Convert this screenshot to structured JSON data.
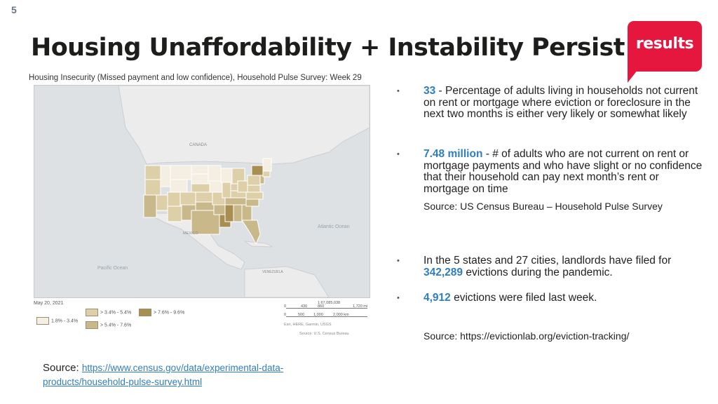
{
  "slide_number": "5",
  "title": "Housing Unaffordability + Instability Persist",
  "logo": {
    "text": "results",
    "color": "#e5173f"
  },
  "map": {
    "title": "Housing Insecurity (Missed payment and low confidence), Household Pulse Survey: Week 29",
    "labels": {
      "canada": "CANADA",
      "mexico": "MEXICO",
      "atlantic": "Atlantic\nOcean",
      "pacific": "Pacific Ocean",
      "venezuela": "VENEZUELA"
    },
    "date": "May 20, 2021",
    "legend": [
      {
        "label": "1.8% - 3.4%",
        "color": "#f4efe2"
      },
      {
        "label": "> 3.4% - 5.4%",
        "color": "#ddd0a8"
      },
      {
        "label": "> 5.4% - 7.6%",
        "color": "#c9b88a"
      },
      {
        "label": "> 7.6% - 9.6%",
        "color": "#a98e52"
      }
    ],
    "scale": {
      "ratio": "1:67,085,038",
      "miles": [
        "0",
        "430",
        "860",
        "1,720 mi"
      ],
      "km": [
        "0",
        "500",
        "1,000",
        "2,000 km"
      ],
      "credit1": "Esri, HERE, Garmin, USGS",
      "credit2": "Source: U.S. Census Bureau"
    }
  },
  "bullets": [
    {
      "highlight": "33",
      "text": " - Percentage of adults living in households not current on rent or mortgage where eviction or foreclosure in the next two months is either very likely or somewhat likely"
    },
    {
      "highlight": "7.48 million",
      "text": " - # of adults who are not current on rent or mortgage payments and who have slight or no confidence that their household can pay next month’s rent or mortgage on time"
    }
  ],
  "source_1": "Source: US Census Bureau – Household Pulse Survey",
  "bullet3": {
    "pre": "In the 5 states and 27 cities, landlords have filed for ",
    "highlight": "342,289",
    "post": " evictions during the pandemic."
  },
  "bullet4": {
    "highlight": "4,912",
    "post": " evictions were filed last week."
  },
  "source_2": "Source: https://evictionlab.org/eviction-tracking/",
  "bottom_source": {
    "label": "Source: ",
    "link_line1": "https://www.census.gov/data/experimental-data-",
    "link_line2": "products/household-pulse-survey.html"
  }
}
